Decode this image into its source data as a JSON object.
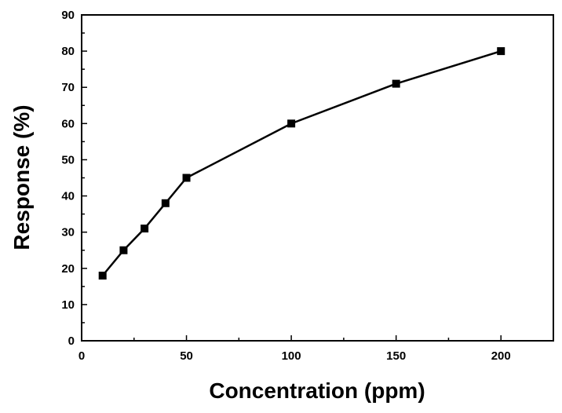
{
  "chart_data": {
    "type": "line",
    "title": "",
    "xlabel": "Concentration (ppm)",
    "ylabel": "Response (%)",
    "xlim": [
      0,
      225
    ],
    "ylim": [
      0,
      90
    ],
    "xticks": [
      0,
      50,
      100,
      150,
      200
    ],
    "yticks": [
      0,
      10,
      20,
      30,
      40,
      50,
      60,
      70,
      80,
      90
    ],
    "grid": false,
    "legend": "none",
    "marker": "square",
    "color": "#000000",
    "series": [
      {
        "x": [
          10,
          20,
          30,
          40,
          50,
          100,
          150,
          200
        ],
        "y": [
          18,
          25,
          31,
          38,
          45,
          60,
          71,
          80
        ]
      }
    ]
  }
}
